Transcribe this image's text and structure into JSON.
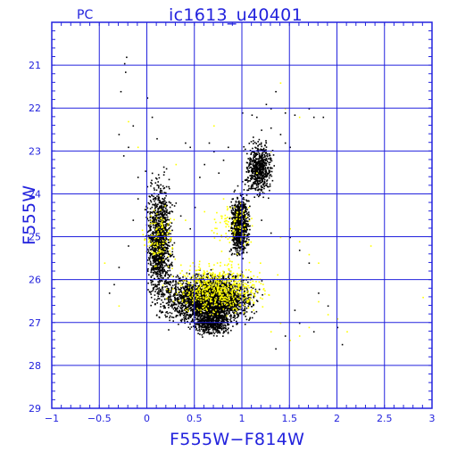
{
  "chart_data": {
    "type": "scatter",
    "panel_label": "PC",
    "title": "ic1613_u40401",
    "xlabel": "F555W−F814W",
    "ylabel": "F555W",
    "xlim": [
      -1,
      3
    ],
    "ylim": [
      29,
      20
    ],
    "y_inverted": true,
    "x_ticks": [
      "−1",
      "−0.5",
      "0",
      "0.5",
      "1",
      "1.5",
      "2",
      "2.5",
      "3"
    ],
    "y_ticks": [
      "21",
      "22",
      "23",
      "24",
      "25",
      "26",
      "27",
      "28",
      "29"
    ],
    "grid": true,
    "colors": {
      "axes": "#2222dd",
      "points_primary": "#000000",
      "points_secondary": "#ffff00"
    },
    "series": [
      {
        "color": "black",
        "points": [
          [
            -0.22,
            20.8
          ],
          [
            -0.24,
            20.95
          ],
          [
            -0.23,
            21.15
          ],
          [
            -0.28,
            21.6
          ],
          [
            0.0,
            21.75
          ],
          [
            -0.3,
            22.6
          ],
          [
            -0.15,
            22.4
          ],
          [
            0.05,
            22.2
          ],
          [
            0.4,
            22.8
          ],
          [
            0.45,
            22.9
          ],
          [
            -0.2,
            22.9
          ],
          [
            0.2,
            23.4
          ],
          [
            -0.25,
            23.1
          ],
          [
            0.1,
            22.7
          ],
          [
            -0.1,
            23.6
          ],
          [
            1.0,
            22.1
          ],
          [
            1.1,
            22.15
          ],
          [
            1.15,
            22.2
          ],
          [
            1.35,
            21.6
          ],
          [
            1.25,
            21.9
          ],
          [
            1.3,
            22.0
          ],
          [
            1.45,
            22.1
          ],
          [
            1.55,
            22.15
          ],
          [
            1.7,
            22.0
          ],
          [
            1.75,
            22.2
          ],
          [
            1.85,
            22.2
          ],
          [
            1.2,
            22.5
          ],
          [
            1.3,
            22.45
          ],
          [
            1.4,
            22.6
          ],
          [
            1.45,
            22.8
          ],
          [
            1.5,
            22.9
          ],
          [
            1.1,
            23.0
          ],
          [
            1.2,
            23.1
          ],
          [
            1.25,
            23.2
          ],
          [
            1.05,
            23.4
          ],
          [
            1.15,
            23.35
          ],
          [
            1.2,
            23.5
          ],
          [
            1.0,
            23.7
          ],
          [
            1.1,
            23.6
          ],
          [
            1.05,
            23.9
          ],
          [
            0.95,
            23.8
          ],
          [
            1.0,
            24.0
          ],
          [
            0.9,
            24.1
          ],
          [
            0.75,
            23.5
          ],
          [
            0.8,
            23.2
          ],
          [
            0.85,
            22.9
          ],
          [
            0.7,
            23.0
          ],
          [
            0.65,
            22.8
          ],
          [
            0.6,
            23.3
          ],
          [
            0.55,
            23.6
          ],
          [
            0.3,
            24.2
          ],
          [
            0.35,
            24.5
          ],
          [
            0.5,
            24.3
          ],
          [
            0.45,
            24.8
          ],
          [
            1.2,
            24.6
          ],
          [
            1.3,
            24.9
          ],
          [
            1.5,
            25.0
          ],
          [
            1.6,
            25.3
          ],
          [
            1.7,
            25.6
          ],
          [
            1.8,
            26.3
          ],
          [
            1.9,
            26.6
          ],
          [
            2.0,
            27.1
          ],
          [
            2.05,
            27.5
          ],
          [
            1.75,
            27.2
          ],
          [
            1.6,
            27.0
          ],
          [
            1.55,
            26.7
          ],
          [
            1.45,
            27.3
          ],
          [
            1.35,
            27.6
          ],
          [
            -0.35,
            26.1
          ],
          [
            -0.4,
            26.3
          ],
          [
            -0.3,
            25.7
          ],
          [
            -0.2,
            25.2
          ],
          [
            -0.15,
            24.6
          ],
          [
            -0.1,
            24.1
          ],
          [
            0.05,
            24.9
          ]
        ]
      },
      {
        "color": "yellow",
        "points": [
          [
            -0.2,
            22.3
          ],
          [
            -0.1,
            22.9
          ],
          [
            0.3,
            23.3
          ],
          [
            0.7,
            22.4
          ],
          [
            1.45,
            22.0
          ],
          [
            1.4,
            21.4
          ],
          [
            1.6,
            22.2
          ],
          [
            1.3,
            23.0
          ],
          [
            1.15,
            23.5
          ],
          [
            1.4,
            25.0
          ],
          [
            1.5,
            24.8
          ],
          [
            1.6,
            25.1
          ],
          [
            1.7,
            25.4
          ],
          [
            1.8,
            25.6
          ],
          [
            2.35,
            25.2
          ],
          [
            2.9,
            26.4
          ],
          [
            1.8,
            26.5
          ],
          [
            1.9,
            26.8
          ],
          [
            1.7,
            27.1
          ],
          [
            1.6,
            27.3
          ],
          [
            1.5,
            27.4
          ],
          [
            1.4,
            27.0
          ],
          [
            1.3,
            27.2
          ],
          [
            2.0,
            26.9
          ],
          [
            2.1,
            27.2
          ],
          [
            0.4,
            24.6
          ],
          [
            0.6,
            24.4
          ],
          [
            0.8,
            24.1
          ],
          [
            -0.45,
            25.6
          ],
          [
            -0.3,
            26.6
          ]
        ]
      }
    ],
    "clusters": [
      {
        "color": "black",
        "count": 1200,
        "x": [
          -0.05,
          0.3
        ],
        "y": [
          23.2,
          27.0
        ]
      },
      {
        "color": "black",
        "count": 2600,
        "x": [
          0.05,
          1.25
        ],
        "y": [
          25.7,
          27.2
        ]
      },
      {
        "color": "black",
        "count": 900,
        "x": [
          0.85,
          1.1
        ],
        "y": [
          23.8,
          25.6
        ]
      },
      {
        "color": "black",
        "count": 600,
        "x": [
          1.0,
          1.35
        ],
        "y": [
          22.6,
          24.2
        ]
      },
      {
        "color": "black",
        "count": 500,
        "x": [
          0.4,
          0.95
        ],
        "y": [
          26.6,
          27.4
        ]
      },
      {
        "color": "yellow",
        "count": 650,
        "x": [
          0.1,
          1.4
        ],
        "y": [
          25.4,
          27.0
        ]
      },
      {
        "color": "yellow",
        "count": 120,
        "x": [
          -0.1,
          0.35
        ],
        "y": [
          24.0,
          26.0
        ]
      },
      {
        "color": "yellow",
        "count": 100,
        "x": [
          0.6,
          1.2
        ],
        "y": [
          24.0,
          25.5
        ]
      }
    ]
  }
}
